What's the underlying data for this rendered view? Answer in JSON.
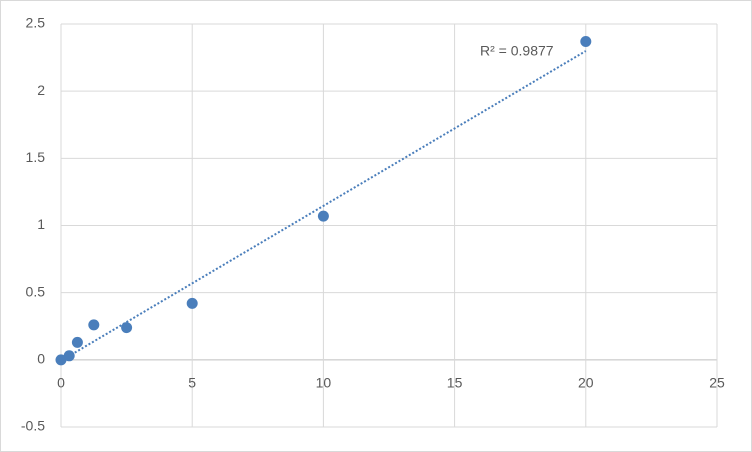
{
  "chart_data": {
    "type": "scatter",
    "x": [
      0,
      0.3125,
      0.625,
      1.25,
      2.5,
      5,
      10,
      20
    ],
    "values": [
      0,
      0.03,
      0.13,
      0.26,
      0.24,
      0.42,
      1.07,
      2.37
    ],
    "color": "#4a7ebb",
    "trendline": "linear",
    "annotation": "R² = 0.9877",
    "xlim": [
      0,
      25
    ],
    "xticks": [
      0,
      5,
      10,
      15,
      20,
      25
    ],
    "ylim": [
      -0.5,
      2.5
    ],
    "yticks": [
      -0.5,
      0,
      0.5,
      1,
      1.5,
      2,
      2.5
    ],
    "grid": true
  }
}
